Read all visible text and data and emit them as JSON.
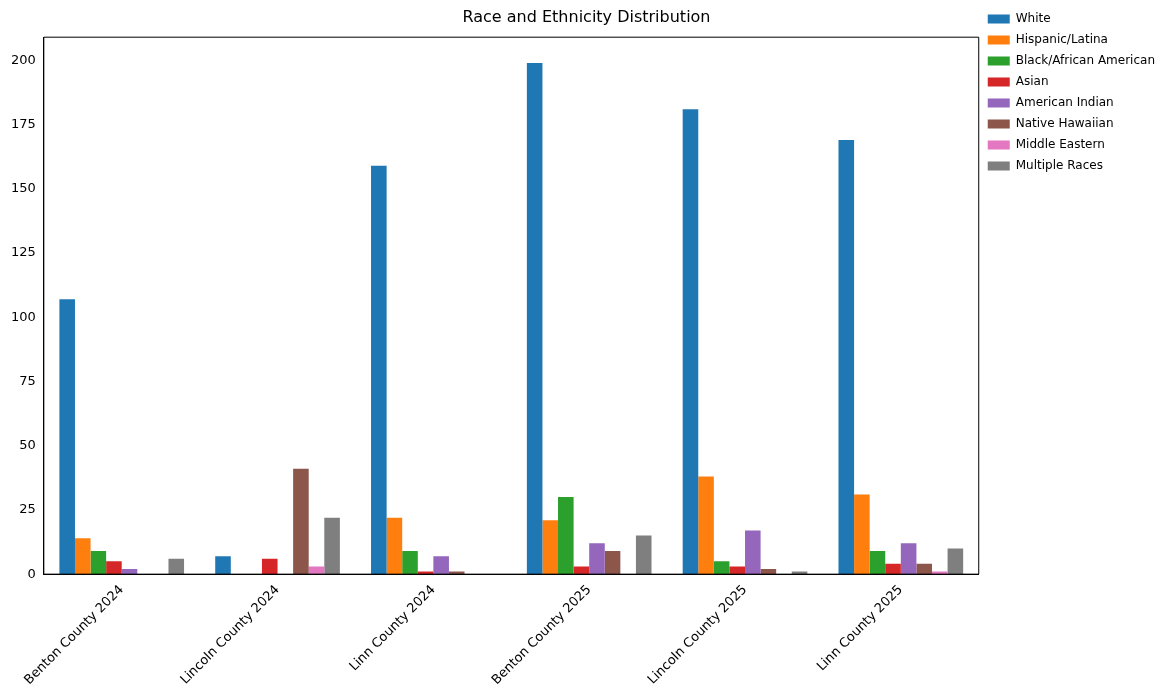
{
  "chart_data": {
    "type": "bar",
    "title": "Race and Ethnicity Distribution",
    "categories": [
      "Benton County 2024",
      "Lincoln County 2024",
      "Linn County 2024",
      "Benton County 2025",
      "Lincoln County 2025",
      "Linn County 2025"
    ],
    "series": [
      {
        "name": "White",
        "color": "#1f77b4",
        "values": [
          107,
          7,
          159,
          199,
          181,
          169
        ]
      },
      {
        "name": "Hispanic/Latina",
        "color": "#ff7f0e",
        "values": [
          14,
          0,
          22,
          21,
          38,
          31
        ]
      },
      {
        "name": "Black/African American",
        "color": "#2ca02c",
        "values": [
          9,
          0,
          9,
          30,
          5,
          9
        ]
      },
      {
        "name": "Asian",
        "color": "#d62728",
        "values": [
          5,
          6,
          1,
          3,
          3,
          4
        ]
      },
      {
        "name": "American Indian",
        "color": "#9467bd",
        "values": [
          2,
          0,
          7,
          12,
          17,
          12
        ]
      },
      {
        "name": "Native Hawaiian",
        "color": "#8c564b",
        "values": [
          0,
          41,
          1,
          9,
          2,
          4
        ]
      },
      {
        "name": "Middle Eastern",
        "color": "#e377c2",
        "values": [
          0,
          3,
          0,
          0,
          0,
          1
        ]
      },
      {
        "name": "Multiple Races",
        "color": "#7f7f7f",
        "values": [
          6,
          22,
          0,
          15,
          1,
          10
        ]
      }
    ],
    "ylim": [
      0,
      209
    ],
    "yticks": [
      0,
      25,
      50,
      75,
      100,
      125,
      150,
      175,
      200
    ],
    "grid": false,
    "legend": "top right"
  }
}
